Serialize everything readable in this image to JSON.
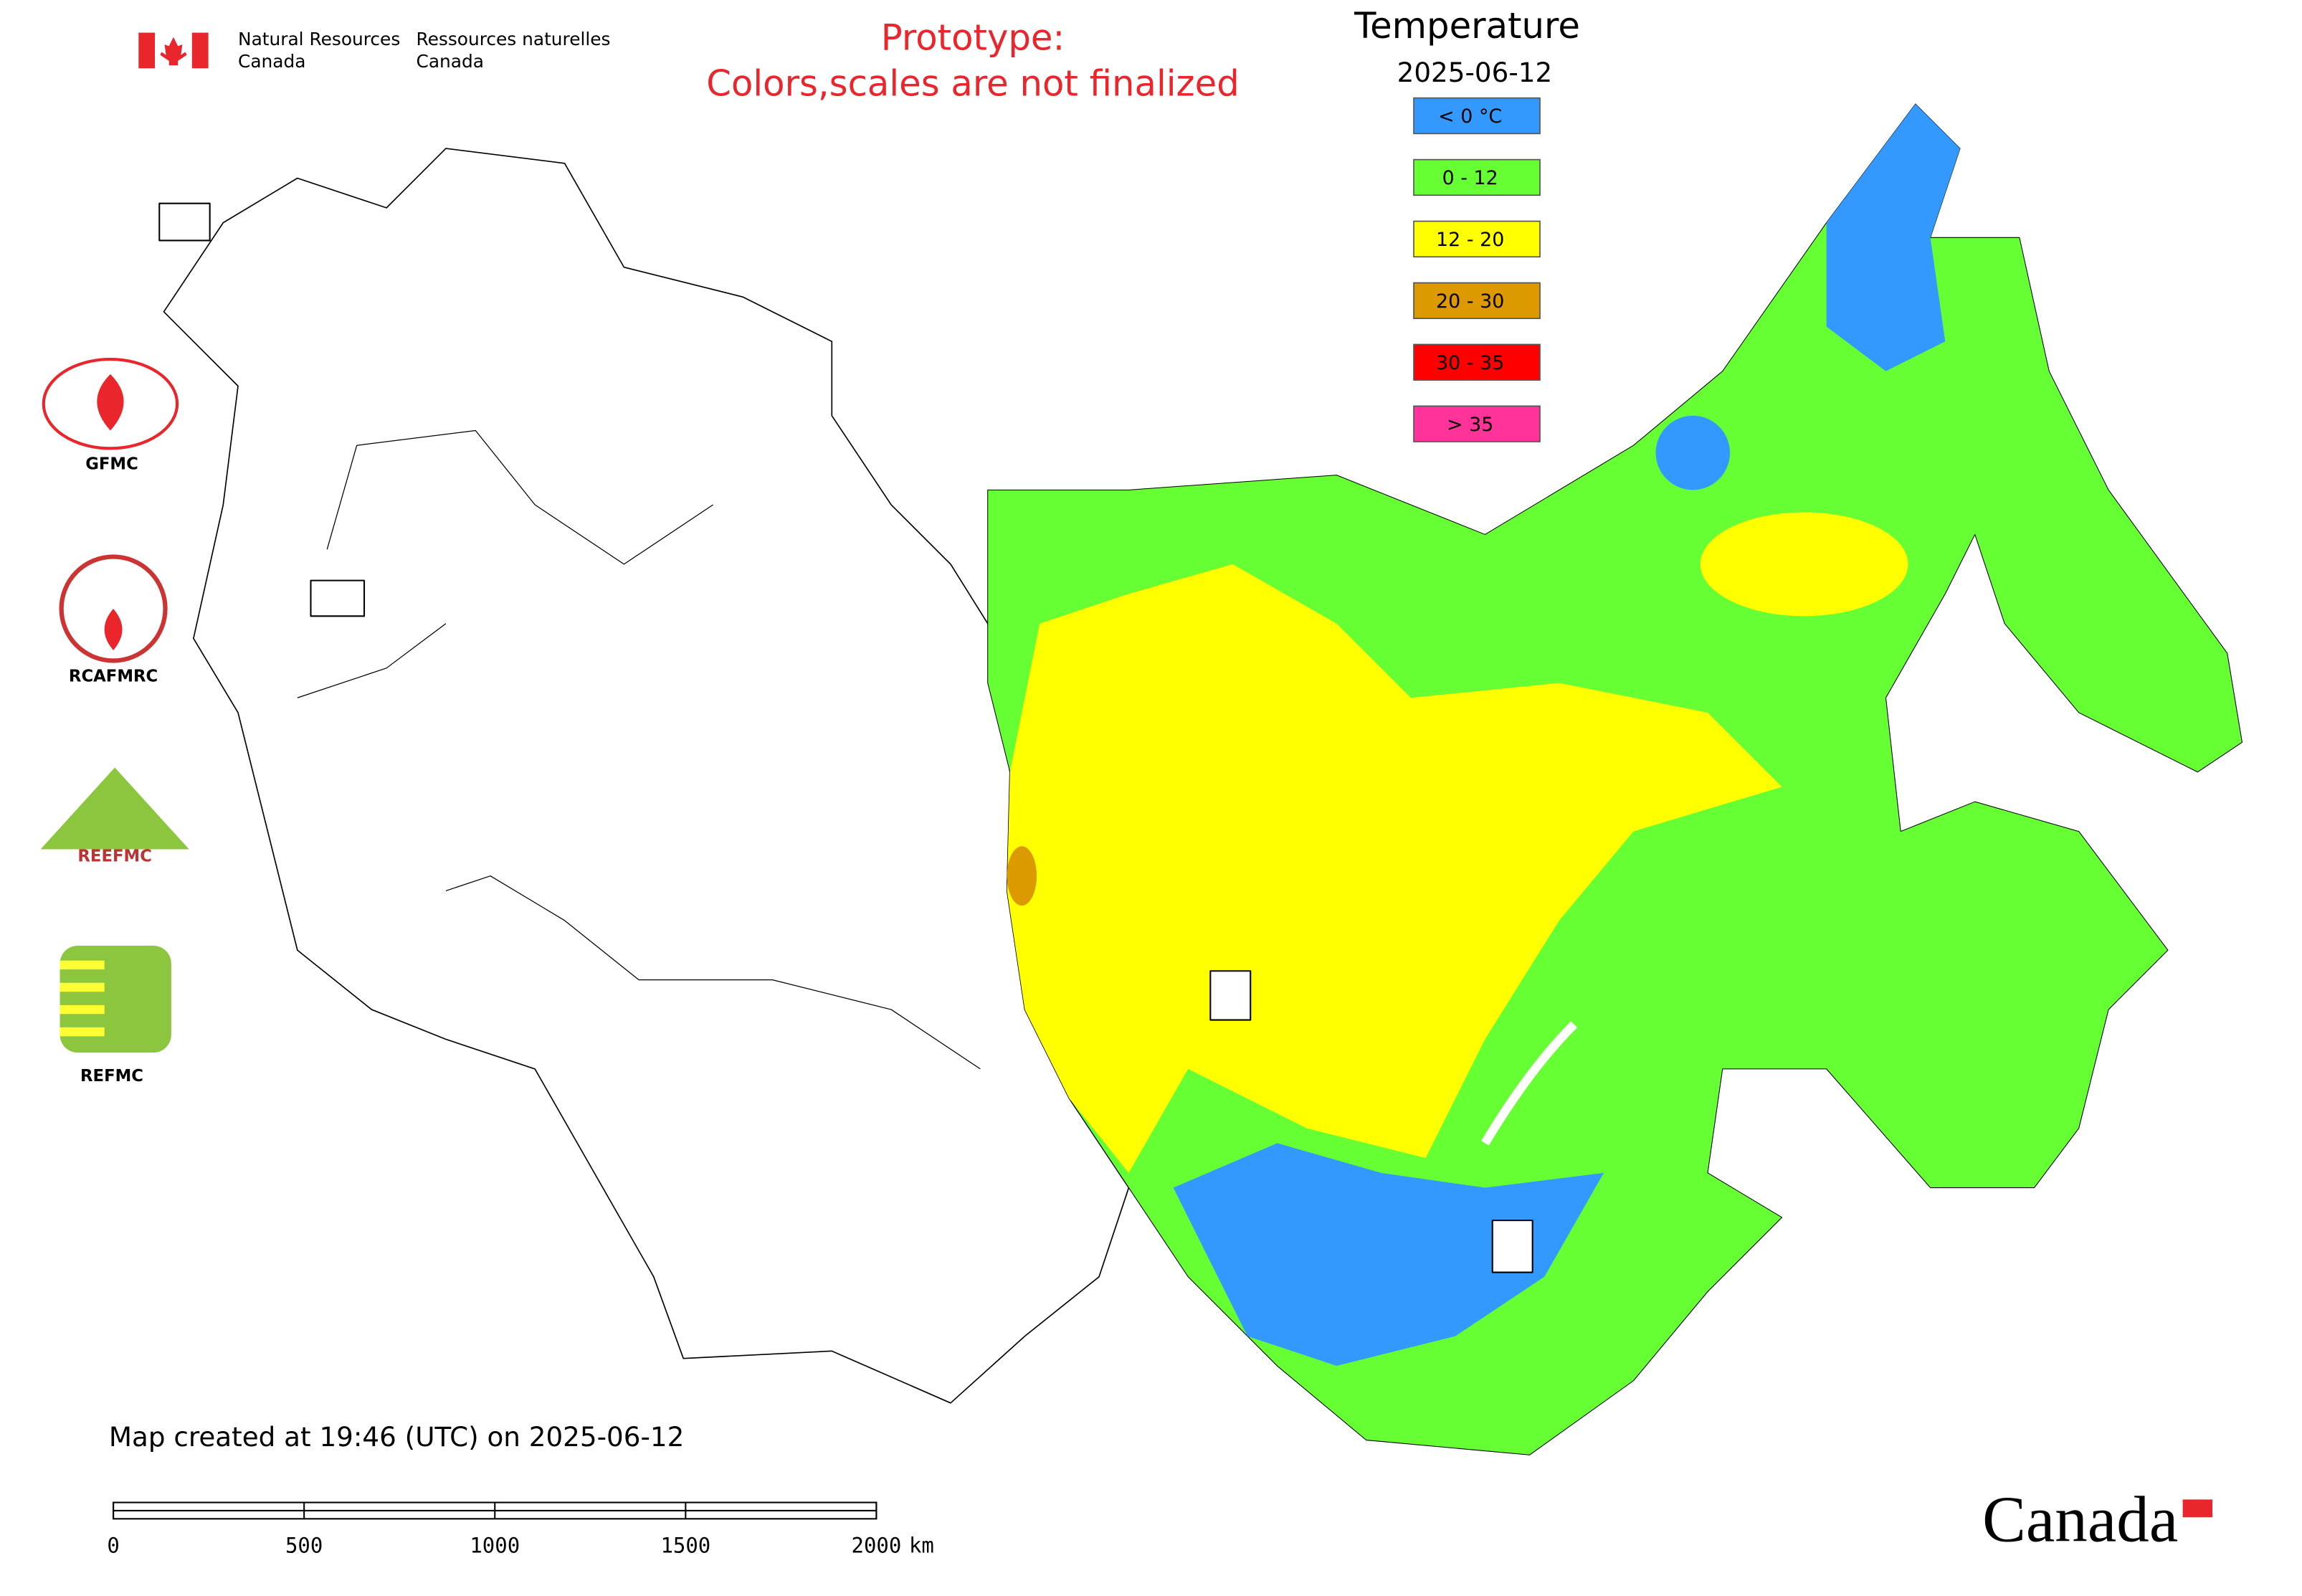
{
  "header": {
    "org_en": [
      "Natural Resources",
      "Canada"
    ],
    "org_fr": [
      "Ressources naturelles",
      "Canada"
    ],
    "notice": [
      "Prototype:",
      "Colors,scales are not finalized"
    ]
  },
  "legend": {
    "title": "Temperature",
    "date": "2025-06-12",
    "entries": [
      {
        "label": "< 0 °C",
        "color": "#3399ff"
      },
      {
        "label": "0 - 12",
        "color": "#66ff33"
      },
      {
        "label": "12 - 20",
        "color": "#ffff00"
      },
      {
        "label": "20 - 30",
        "color": "#dd9900"
      },
      {
        "label": "30 - 35",
        "color": "#ff0000"
      },
      {
        "label": "> 35",
        "color": "#ff3399"
      }
    ]
  },
  "logos": {
    "gfmc": "GFMC",
    "rcafmrc": "RCAFMRC",
    "reefmc": "REEFMC",
    "refmc": "REFMC"
  },
  "footer": {
    "created": "Map created at 19:46 (UTC) on 2025-06-12",
    "wordmark": "Canada"
  },
  "scale": {
    "ticks": [
      0,
      500,
      1000,
      1500,
      2000
    ],
    "unit": "km"
  }
}
